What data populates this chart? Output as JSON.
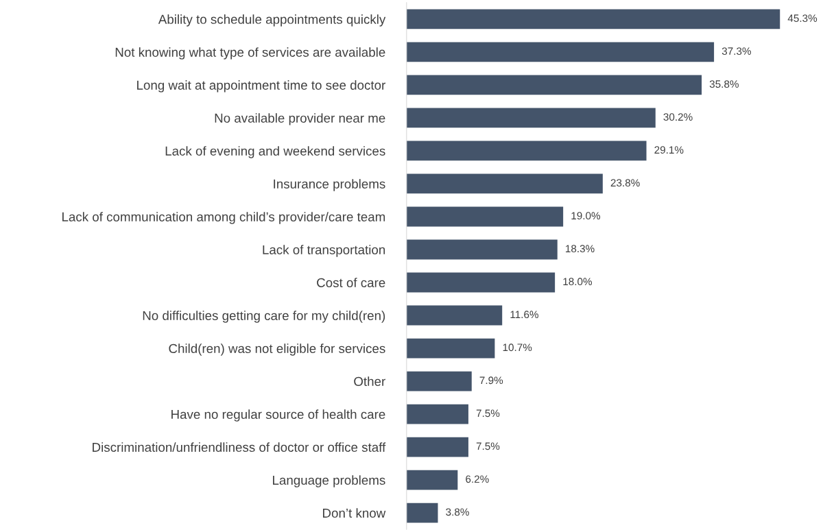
{
  "chart_data": {
    "type": "bar",
    "orientation": "horizontal",
    "categories": [
      "Ability to schedule appointments quickly",
      "Not knowing what type of services are available",
      "Long wait at appointment time to see doctor",
      "No available provider near me",
      "Lack of evening and weekend services",
      "Insurance problems",
      "Lack of communication among child’s provider/care team",
      "Lack of transportation",
      "Cost of care",
      "No difficulties getting care for my child(ren)",
      "Child(ren) was not eligible for services",
      "Other",
      "Have no regular source of health care",
      "Discrimination/unfriendliness of doctor or office staff",
      "Language problems",
      "Don’t know"
    ],
    "values": [
      45.3,
      37.3,
      35.8,
      30.2,
      29.1,
      23.8,
      19.0,
      18.3,
      18.0,
      11.6,
      10.7,
      7.9,
      7.5,
      7.5,
      6.2,
      3.8
    ],
    "value_labels": [
      "45.3%",
      "37.3%",
      "35.8%",
      "30.2%",
      "29.1%",
      "23.8%",
      "19.0%",
      "18.3%",
      "18.0%",
      "11.6%",
      "10.7%",
      "7.9%",
      "7.5%",
      "7.5%",
      "6.2%",
      "3.8%"
    ],
    "color": "#44546a",
    "grid": false,
    "legend": false
  }
}
